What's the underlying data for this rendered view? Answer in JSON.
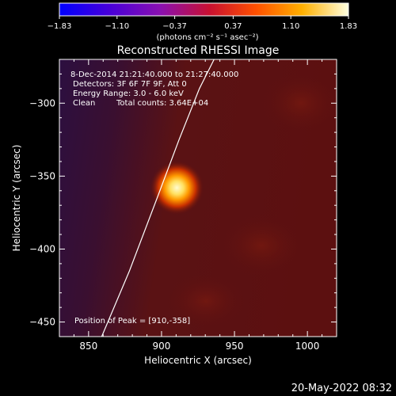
{
  "chart_data": {
    "type": "heatmap",
    "title": "Reconstructed RHESSI Image",
    "xlabel": "Heliocentric X (arcsec)",
    "ylabel": "Heliocentric Y (arcsec)",
    "xlim": [
      830,
      1020
    ],
    "ylim": [
      -460,
      -270
    ],
    "x_ticks": [
      850,
      900,
      950,
      1000
    ],
    "y_ticks": [
      -300,
      -350,
      -400,
      -450
    ],
    "x_tick_labels": [
      "850",
      "900",
      "950",
      "1000"
    ],
    "y_tick_labels": [
      "−300",
      "−350",
      "−400",
      "−450"
    ],
    "colorbar": {
      "min": -1.83,
      "max": 1.83,
      "ticks": [
        -1.83,
        -1.1,
        -0.37,
        0.37,
        1.1,
        1.83
      ],
      "tick_labels": [
        "−1.83",
        "−1.10",
        "−0.37",
        "0.37",
        "1.10",
        "1.83"
      ],
      "label": "(photons cm⁻² s⁻¹ asec⁻²)",
      "colors": [
        "#0000ff",
        "#5a00d0",
        "#9a10a0",
        "#d02020",
        "#ff6000",
        "#ffd000",
        "#ffffd0"
      ]
    },
    "annotations": [
      "8-Dec-2014 21:21:40.000 to 21:27:40.000",
      "Detectors: 3F 6F 7F 9F, Att 0",
      "Energy Range: 3.0 - 6.0 keV",
      "Clean",
      "Total counts: 3.64E+04"
    ],
    "peak_label": "Position of Peak = [910,-358]",
    "peak": [
      910,
      -358
    ],
    "limb_x": [
      859,
      878,
      897,
      912,
      926,
      936
    ],
    "limb_y": [
      -460,
      -415,
      -365,
      -325,
      -290,
      -270
    ],
    "background_colors": {
      "dark_region": "#2a0f3a",
      "disk": "#5a1010",
      "source_core": "#fff8c0",
      "source_glow": "#ff9a00"
    }
  },
  "footer": {
    "date": "20-May-2022 08:32"
  }
}
